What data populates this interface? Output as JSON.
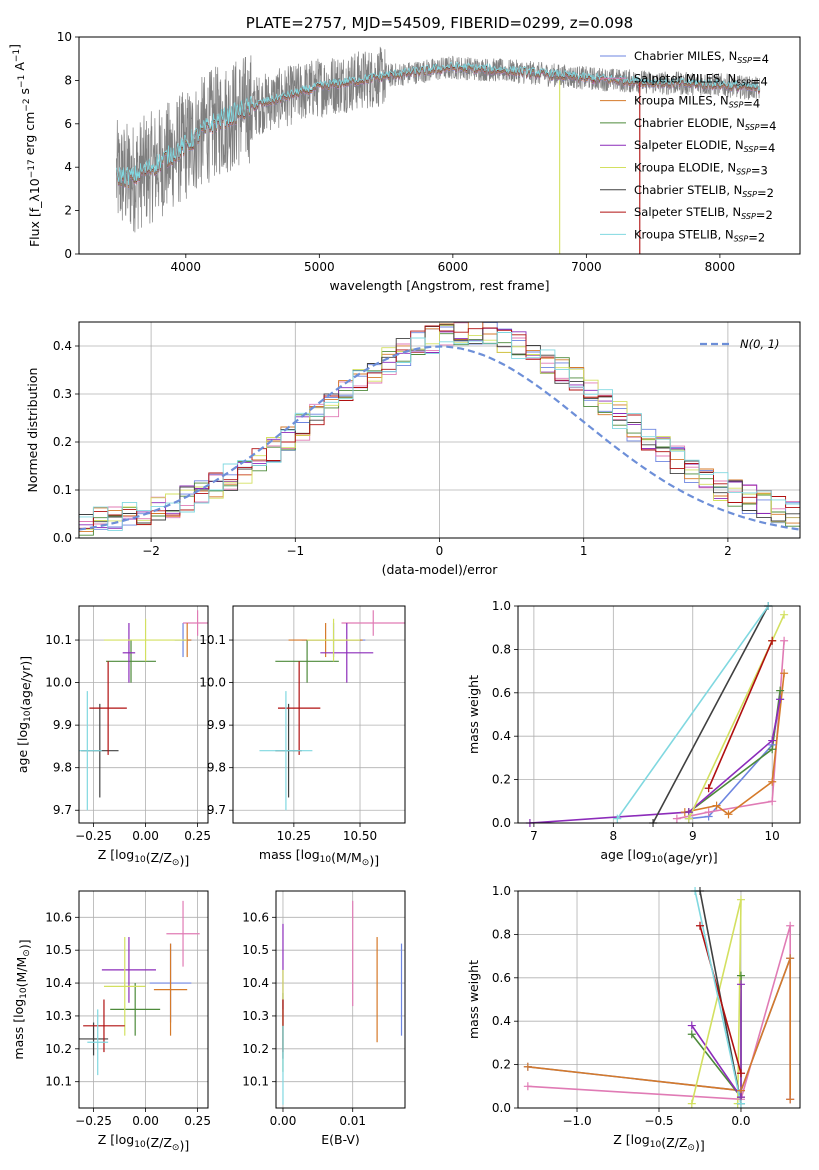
{
  "colors": {
    "Chabrier MILES": "#6d85e0",
    "Salpeter MILES": "#e07bb5",
    "Kroupa MILES": "#d57a2a",
    "Chabrier ELODIE": "#4d8a3a",
    "Salpeter ELODIE": "#8c2cba",
    "Kroupa ELODIE": "#d3e060",
    "Chabrier STELIB": "#404040",
    "Salpeter STELIB": "#b01010",
    "Kroupa STELIB": "#80d8e0",
    "data": "#7f7f7f",
    "normal": "#6d8fd8"
  },
  "chart_data": [
    {
      "id": "spectrum",
      "type": "line",
      "title": "PLATE=2757, MJD=54509, FIBERID=0299, z=0.098",
      "xlabel": "wavelength [Angstrom, rest frame]",
      "ylabel": "Flux [f_λ10^-17 erg cm^-2 s^-1 A^-1]",
      "xlim": [
        3200,
        8600
      ],
      "ylim": [
        0,
        10
      ],
      "xticks": [
        4000,
        5000,
        6000,
        7000,
        8000
      ],
      "yticks": [
        0,
        2,
        4,
        6,
        8,
        10
      ],
      "grid": false,
      "legend_position": "top-right",
      "legend": [
        {
          "model": "Chabrier MILES",
          "imf": "Chabrier",
          "lib": "MILES",
          "nssp": 4
        },
        {
          "model": "Salpeter MILES",
          "imf": "Salpeter",
          "lib": "MILES",
          "nssp": 4
        },
        {
          "model": "Kroupa MILES",
          "imf": "Kroupa",
          "lib": "MILES",
          "nssp": 4
        },
        {
          "model": "Chabrier ELODIE",
          "imf": "Chabrier",
          "lib": "ELODIE",
          "nssp": 4
        },
        {
          "model": "Salpeter ELODIE",
          "imf": "Salpeter",
          "lib": "ELODIE",
          "nssp": 4
        },
        {
          "model": "Kroupa ELODIE",
          "imf": "Kroupa",
          "lib": "ELODIE",
          "nssp": 3
        },
        {
          "model": "Chabrier STELIB",
          "imf": "Chabrier",
          "lib": "STELIB",
          "nssp": 2
        },
        {
          "model": "Salpeter STELIB",
          "imf": "Salpeter",
          "lib": "STELIB",
          "nssp": 2
        },
        {
          "model": "Kroupa STELIB",
          "imf": "Kroupa",
          "lib": "STELIB",
          "nssp": 2
        }
      ],
      "continuum": {
        "x": [
          3480,
          3600,
          3800,
          4000,
          4200,
          4500,
          5000,
          5500,
          6000,
          6500,
          7000,
          7500,
          8000,
          8300
        ],
        "y": [
          3.6,
          3.5,
          4.2,
          5.0,
          6.0,
          6.8,
          7.7,
          8.2,
          8.6,
          8.4,
          8.1,
          7.9,
          7.8,
          7.6
        ]
      },
      "observed_range": [
        3480,
        8300
      ],
      "vertical_artifacts": [
        {
          "x": 6800,
          "model": "Kroupa ELODIE",
          "ymin": 0,
          "ymax": 8.0
        },
        {
          "x": 7400,
          "model": "Salpeter STELIB",
          "ymin": 0,
          "ymax": 8.0
        }
      ]
    },
    {
      "id": "residuals",
      "type": "histogram",
      "xlabel": "(data-model)/error",
      "ylabel": "Normed distribution",
      "xlim": [
        -2.5,
        2.5
      ],
      "ylim": [
        0,
        0.45
      ],
      "xticks": [
        -2,
        -1,
        0,
        1,
        2
      ],
      "yticks": [
        0.0,
        0.1,
        0.2,
        0.3,
        0.4
      ],
      "grid": true,
      "legend_position": "top-right",
      "reference_curve": {
        "label": "N(0, 1)",
        "mean": 0,
        "sigma": 1
      },
      "bin_width": 0.1
    },
    {
      "id": "z-age",
      "type": "errorbar",
      "xlabel": "Z [log10(Z/Z⊙)]",
      "ylabel": "age [log10(age/yr)]",
      "xlim": [
        -0.32,
        0.3
      ],
      "ylim": [
        9.67,
        10.18
      ],
      "xticks": [
        -0.25,
        0.0,
        0.25
      ],
      "yticks": [
        9.7,
        9.8,
        9.9,
        10.0,
        10.1
      ],
      "grid": true,
      "points": [
        {
          "model": "Chabrier MILES",
          "x": 0.18,
          "xerr": 0.04,
          "y": 10.1,
          "yerr": 0.04
        },
        {
          "model": "Salpeter MILES",
          "x": 0.25,
          "xerr": 0.07,
          "y": 10.14,
          "yerr": 0.03
        },
        {
          "model": "Kroupa MILES",
          "x": 0.2,
          "xerr": 0.02,
          "y": 10.1,
          "yerr": 0.04
        },
        {
          "model": "Chabrier ELODIE",
          "x": -0.07,
          "xerr": 0.12,
          "y": 10.05,
          "yerr": 0.05
        },
        {
          "model": "Salpeter ELODIE",
          "x": -0.08,
          "xerr": 0.03,
          "y": 10.07,
          "yerr": 0.07
        },
        {
          "model": "Kroupa ELODIE",
          "x": 0.0,
          "xerr": 0.2,
          "y": 10.1,
          "yerr": 0.05
        },
        {
          "model": "Chabrier STELIB",
          "x": -0.22,
          "xerr": 0.09,
          "y": 9.84,
          "yerr": 0.11
        },
        {
          "model": "Salpeter STELIB",
          "x": -0.18,
          "xerr": 0.09,
          "y": 9.94,
          "yerr": 0.11
        },
        {
          "model": "Kroupa STELIB",
          "x": -0.28,
          "xerr": 0.07,
          "y": 9.84,
          "yerr": 0.14
        }
      ]
    },
    {
      "id": "mass-age",
      "type": "errorbar",
      "xlabel": "mass [log10(M/M⊙)]",
      "ylabel": "",
      "xlim": [
        10.02,
        10.67
      ],
      "ylim": [
        9.67,
        10.18
      ],
      "xticks": [
        10.25,
        10.5
      ],
      "yticks": [
        9.7,
        9.8,
        9.9,
        10.0,
        10.1
      ],
      "grid": true,
      "points": [
        {
          "model": "Chabrier MILES",
          "x": 10.4,
          "xerr": 0.12,
          "y": 10.1,
          "yerr": 0.04
        },
        {
          "model": "Salpeter MILES",
          "x": 10.55,
          "xerr": 0.12,
          "y": 10.14,
          "yerr": 0.03
        },
        {
          "model": "Kroupa MILES",
          "x": 10.37,
          "xerr": 0.14,
          "y": 10.1,
          "yerr": 0.04
        },
        {
          "model": "Chabrier ELODIE",
          "x": 10.3,
          "xerr": 0.12,
          "y": 10.05,
          "yerr": 0.05
        },
        {
          "model": "Salpeter ELODIE",
          "x": 10.45,
          "xerr": 0.1,
          "y": 10.07,
          "yerr": 0.07
        },
        {
          "model": "Kroupa ELODIE",
          "x": 10.4,
          "xerr": 0.1,
          "y": 10.1,
          "yerr": 0.05
        },
        {
          "model": "Chabrier STELIB",
          "x": 10.23,
          "xerr": 0.05,
          "y": 9.84,
          "yerr": 0.11
        },
        {
          "model": "Salpeter STELIB",
          "x": 10.27,
          "xerr": 0.08,
          "y": 9.94,
          "yerr": 0.11
        },
        {
          "model": "Kroupa STELIB",
          "x": 10.22,
          "xerr": 0.1,
          "y": 9.84,
          "yerr": 0.14
        }
      ]
    },
    {
      "id": "age-weight",
      "type": "line",
      "xlabel": "age [log10(age/yr)]",
      "ylabel": "mass weight",
      "xlim": [
        6.8,
        10.35
      ],
      "ylim": [
        0,
        1.0
      ],
      "xticks": [
        7,
        8,
        9,
        10
      ],
      "yticks": [
        0.0,
        0.2,
        0.4,
        0.6,
        0.8,
        1.0
      ],
      "grid": true,
      "series": [
        {
          "model": "Chabrier MILES",
          "x": [
            8.95,
            9.2,
            10.0,
            10.1
          ],
          "y": [
            0.02,
            0.03,
            0.36,
            0.57
          ]
        },
        {
          "model": "Salpeter MILES",
          "x": [
            8.8,
            9.2,
            10.0,
            10.15
          ],
          "y": [
            0.02,
            0.05,
            0.1,
            0.84
          ]
        },
        {
          "model": "Kroupa MILES",
          "x": [
            8.9,
            9.3,
            9.45,
            10.0,
            10.15
          ],
          "y": [
            0.05,
            0.08,
            0.04,
            0.19,
            0.69
          ]
        },
        {
          "model": "Chabrier ELODIE",
          "x": [
            8.95,
            10.0,
            10.1
          ],
          "y": [
            0.05,
            0.34,
            0.61
          ]
        },
        {
          "model": "Salpeter ELODIE",
          "x": [
            6.95,
            8.95,
            10.0,
            10.1
          ],
          "y": [
            0.0,
            0.05,
            0.38,
            0.57
          ]
        },
        {
          "model": "Kroupa ELODIE",
          "x": [
            8.95,
            10.0,
            10.15
          ],
          "y": [
            0.02,
            0.84,
            0.96
          ]
        },
        {
          "model": "Chabrier STELIB",
          "x": [
            8.5,
            9.95
          ],
          "y": [
            0.0,
            1.0
          ]
        },
        {
          "model": "Salpeter STELIB",
          "x": [
            9.2,
            10.0
          ],
          "y": [
            0.16,
            0.84
          ]
        },
        {
          "model": "Kroupa STELIB",
          "x": [
            8.05,
            9.95
          ],
          "y": [
            0.02,
            1.0
          ]
        }
      ]
    },
    {
      "id": "z-mass",
      "type": "errorbar",
      "xlabel": "Z [log10(Z/Z⊙)]",
      "ylabel": "mass [log10(M/M⊙)]",
      "xlim": [
        -0.32,
        0.3
      ],
      "ylim": [
        10.02,
        10.68
      ],
      "xticks": [
        -0.25,
        0.0,
        0.25
      ],
      "yticks": [
        10.1,
        10.2,
        10.3,
        10.4,
        10.5,
        10.6
      ],
      "grid": true,
      "points": [
        {
          "model": "Chabrier MILES",
          "x": 0.12,
          "xerr": 0.1,
          "y": 10.4,
          "yerr": 0.12
        },
        {
          "model": "Salpeter MILES",
          "x": 0.18,
          "xerr": 0.08,
          "y": 10.55,
          "yerr": 0.1
        },
        {
          "model": "Kroupa MILES",
          "x": 0.12,
          "xerr": 0.08,
          "y": 10.38,
          "yerr": 0.14
        },
        {
          "model": "Chabrier ELODIE",
          "x": -0.05,
          "xerr": 0.12,
          "y": 10.32,
          "yerr": 0.08
        },
        {
          "model": "Salpeter ELODIE",
          "x": -0.08,
          "xerr": 0.13,
          "y": 10.44,
          "yerr": 0.1
        },
        {
          "model": "Kroupa ELODIE",
          "x": -0.1,
          "xerr": 0.1,
          "y": 10.39,
          "yerr": 0.15
        },
        {
          "model": "Chabrier STELIB",
          "x": -0.25,
          "xerr": 0.07,
          "y": 10.23,
          "yerr": 0.05
        },
        {
          "model": "Salpeter STELIB",
          "x": -0.2,
          "xerr": 0.1,
          "y": 10.27,
          "yerr": 0.08
        },
        {
          "model": "Kroupa STELIB",
          "x": -0.23,
          "xerr": 0.05,
          "y": 10.22,
          "yerr": 0.1
        }
      ]
    },
    {
      "id": "ebv-mass",
      "type": "errorbar",
      "xlabel": "E(B-V)",
      "ylabel": "",
      "xlim": [
        -0.001,
        0.0175
      ],
      "ylim": [
        10.02,
        10.68
      ],
      "xticks": [
        0.0,
        0.01
      ],
      "tick_labels": [
        "0.00",
        "0.01"
      ],
      "yticks": [
        10.1,
        10.2,
        10.3,
        10.4,
        10.5,
        10.6
      ],
      "grid": true,
      "points": [
        {
          "model": "Chabrier MILES",
          "x": 0.017,
          "y": 10.38,
          "yerr": 0.14
        },
        {
          "model": "Salpeter MILES",
          "x": 0.01,
          "y": 10.49,
          "yerr": 0.16
        },
        {
          "model": "Kroupa MILES",
          "x": 0.0135,
          "y": 10.38,
          "yerr": 0.16
        },
        {
          "model": "Chabrier ELODIE",
          "x": 0.0,
          "y": 10.25,
          "yerr": 0.12
        },
        {
          "model": "Salpeter ELODIE",
          "x": 0.0,
          "y": 10.45,
          "yerr": 0.13
        },
        {
          "model": "Kroupa ELODIE",
          "x": 0.0,
          "y": 10.32,
          "yerr": 0.12
        },
        {
          "model": "Chabrier STELIB",
          "x": 0.0,
          "y": 10.22,
          "yerr": 0.05
        },
        {
          "model": "Salpeter STELIB",
          "x": 0.0,
          "y": 10.27,
          "yerr": 0.08
        },
        {
          "model": "Kroupa STELIB",
          "x": 0.0,
          "y": 10.15,
          "yerr": 0.12
        }
      ]
    },
    {
      "id": "z-weight",
      "type": "line",
      "xlabel": "Z [log10(Z/Z⊙)]",
      "ylabel": "mass weight",
      "xlim": [
        -1.36,
        0.36
      ],
      "ylim": [
        0,
        1.0
      ],
      "xticks": [
        -1.0,
        -0.5,
        0.0
      ],
      "yticks": [
        0.0,
        0.2,
        0.4,
        0.6,
        0.8,
        1.0
      ],
      "grid": true,
      "series": [
        {
          "model": "Chabrier MILES",
          "x": [
            -1.3,
            0.0,
            0.3,
            0.3
          ],
          "y": [
            0.19,
            0.08,
            0.69,
            0.04
          ]
        },
        {
          "model": "Salpeter MILES",
          "x": [
            -1.3,
            0.0,
            0.3,
            0.3
          ],
          "y": [
            0.1,
            0.04,
            0.84,
            0.04
          ]
        },
        {
          "model": "Kroupa MILES",
          "x": [
            -1.3,
            0.0,
            0.3,
            0.3
          ],
          "y": [
            0.19,
            0.08,
            0.69,
            0.04
          ]
        },
        {
          "model": "Chabrier ELODIE",
          "x": [
            -0.3,
            0.0,
            0.0
          ],
          "y": [
            0.34,
            0.05,
            0.61
          ]
        },
        {
          "model": "Salpeter ELODIE",
          "x": [
            -0.3,
            0.0,
            0.0
          ],
          "y": [
            0.38,
            0.05,
            0.57
          ]
        },
        {
          "model": "Kroupa ELODIE",
          "x": [
            -0.3,
            0.0,
            -0.02
          ],
          "y": [
            0.02,
            0.96,
            0.02
          ]
        },
        {
          "model": "Chabrier STELIB",
          "x": [
            -0.25,
            0.0
          ],
          "y": [
            1.0,
            0.02
          ]
        },
        {
          "model": "Salpeter STELIB",
          "x": [
            -0.25,
            0.0
          ],
          "y": [
            0.84,
            0.16
          ]
        },
        {
          "model": "Kroupa STELIB",
          "x": [
            -0.28,
            0.0
          ],
          "y": [
            1.0,
            0.02
          ]
        }
      ]
    }
  ]
}
